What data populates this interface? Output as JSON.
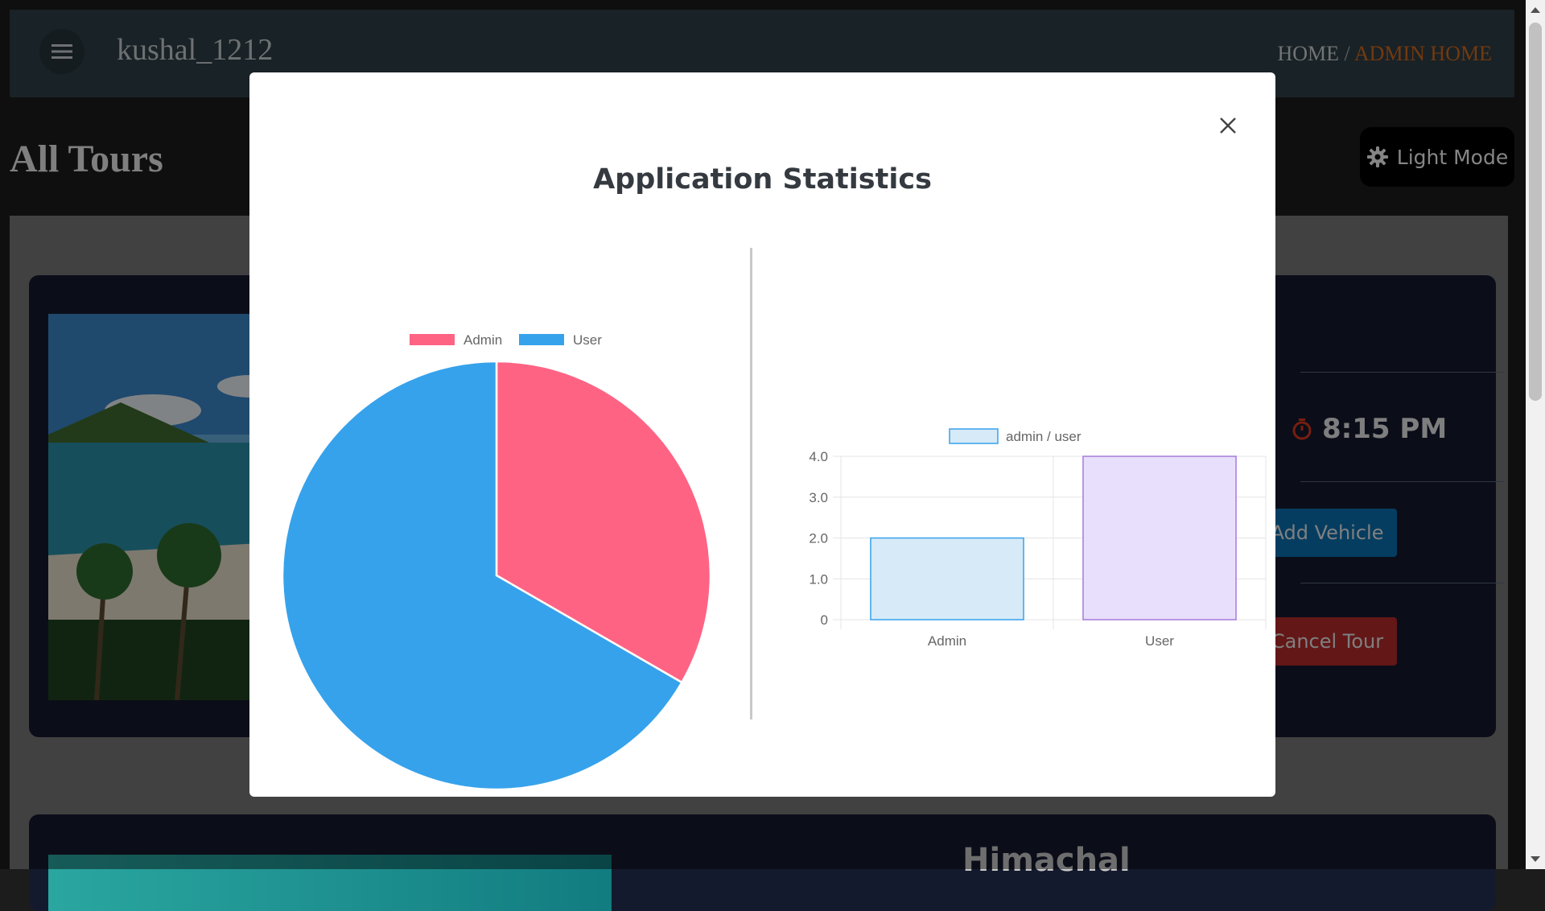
{
  "header": {
    "username": "kushal_1212",
    "breadcrumb": {
      "home": "HOME",
      "separator": " / ",
      "current": "ADMIN HOME"
    }
  },
  "page": {
    "title": "All Tours",
    "mode_toggle_label": "Light Mode"
  },
  "tour_card": {
    "time": "8:15 PM",
    "add_vehicle_label": "Add Vehicle",
    "cancel_tour_label": "Cancel Tour"
  },
  "tour_card_2": {
    "title": "Himachal"
  },
  "modal": {
    "title": "Application Statistics",
    "close_icon": "close-icon"
  },
  "colors": {
    "admin": "#ff6384",
    "user": "#36a2eb",
    "bar_admin_fill": "#d6eaf8",
    "bar_admin_border": "#36a2eb",
    "bar_user_fill": "#e8dffd",
    "bar_user_border": "#a77bd8",
    "accent": "#d2691e"
  },
  "chart_data": [
    {
      "type": "pie",
      "title": "",
      "legend": [
        "Admin",
        "User"
      ],
      "categories": [
        "Admin",
        "User"
      ],
      "values": [
        2,
        4
      ],
      "legend_position": "top"
    },
    {
      "type": "bar",
      "title": "",
      "legend": [
        "admin / user"
      ],
      "categories": [
        "Admin",
        "User"
      ],
      "values": [
        2,
        4
      ],
      "ylim": [
        0,
        4
      ],
      "yticks": [
        "0",
        "1.0",
        "2.0",
        "3.0",
        "4.0"
      ],
      "grid": true,
      "legend_position": "top"
    }
  ]
}
